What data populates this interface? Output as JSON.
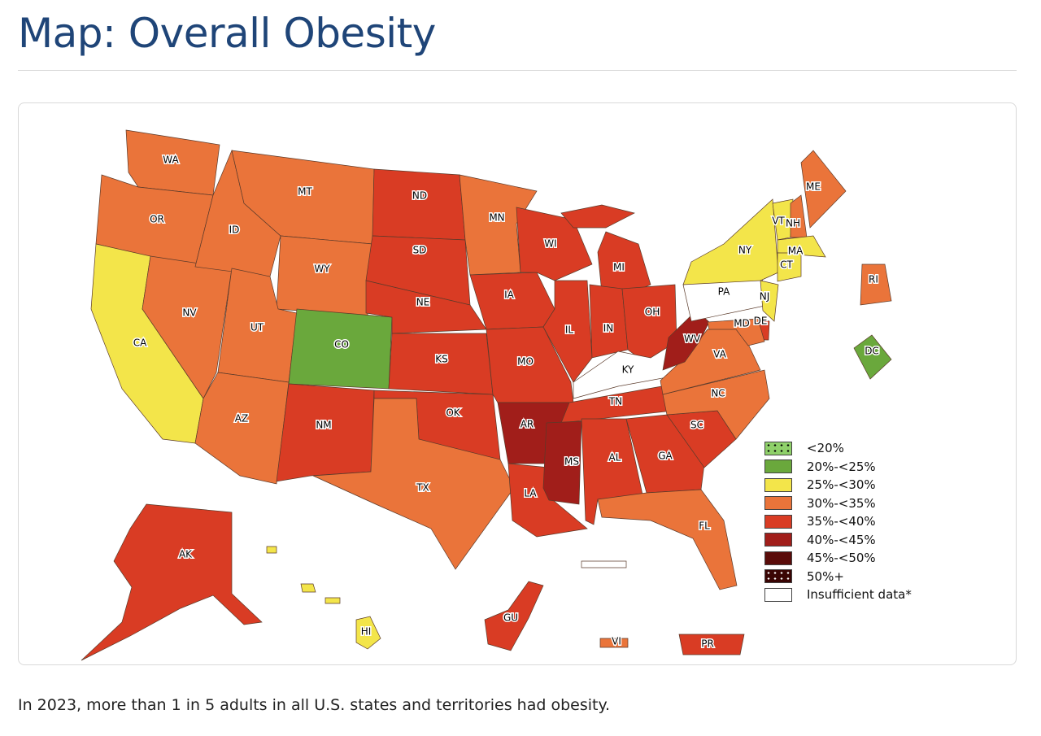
{
  "title": "Map: Overall Obesity",
  "caption": "In 2023, more than 1 in 5 adults in all U.S. states and territories had obesity.",
  "legend": [
    {
      "label": "<20%",
      "color": "#8fd06a",
      "pattern": "dots"
    },
    {
      "label": "20%-<25%",
      "color": "#6aa83c"
    },
    {
      "label": "25%-<30%",
      "color": "#f3e54a"
    },
    {
      "label": "30%-<35%",
      "color": "#ea743a"
    },
    {
      "label": "35%-<40%",
      "color": "#d93c24"
    },
    {
      "label": "40%-<45%",
      "color": "#a11e1a"
    },
    {
      "label": "45%-<50%",
      "color": "#5a0c0a"
    },
    {
      "label": "50%+",
      "color": "#3a0504",
      "pattern": "dots"
    },
    {
      "label": "Insufficient data*",
      "color": "#ffffff"
    }
  ],
  "states": [
    {
      "abbr": "WA",
      "category": "30%-<35%"
    },
    {
      "abbr": "OR",
      "category": "30%-<35%"
    },
    {
      "abbr": "CA",
      "category": "25%-<30%"
    },
    {
      "abbr": "NV",
      "category": "30%-<35%"
    },
    {
      "abbr": "ID",
      "category": "30%-<35%"
    },
    {
      "abbr": "MT",
      "category": "30%-<35%"
    },
    {
      "abbr": "WY",
      "category": "30%-<35%"
    },
    {
      "abbr": "UT",
      "category": "30%-<35%"
    },
    {
      "abbr": "CO",
      "category": "20%-<25%"
    },
    {
      "abbr": "AZ",
      "category": "30%-<35%"
    },
    {
      "abbr": "NM",
      "category": "35%-<40%"
    },
    {
      "abbr": "ND",
      "category": "35%-<40%"
    },
    {
      "abbr": "SD",
      "category": "35%-<40%"
    },
    {
      "abbr": "NE",
      "category": "35%-<40%"
    },
    {
      "abbr": "KS",
      "category": "35%-<40%"
    },
    {
      "abbr": "OK",
      "category": "35%-<40%"
    },
    {
      "abbr": "TX",
      "category": "30%-<35%"
    },
    {
      "abbr": "MN",
      "category": "30%-<35%"
    },
    {
      "abbr": "IA",
      "category": "35%-<40%"
    },
    {
      "abbr": "MO",
      "category": "35%-<40%"
    },
    {
      "abbr": "AR",
      "category": "40%-<45%"
    },
    {
      "abbr": "LA",
      "category": "35%-<40%"
    },
    {
      "abbr": "WI",
      "category": "35%-<40%"
    },
    {
      "abbr": "IL",
      "category": "35%-<40%"
    },
    {
      "abbr": "MI",
      "category": "35%-<40%"
    },
    {
      "abbr": "IN",
      "category": "35%-<40%"
    },
    {
      "abbr": "OH",
      "category": "35%-<40%"
    },
    {
      "abbr": "KY",
      "category": "Insufficient data*"
    },
    {
      "abbr": "TN",
      "category": "35%-<40%"
    },
    {
      "abbr": "MS",
      "category": "40%-<45%"
    },
    {
      "abbr": "AL",
      "category": "35%-<40%"
    },
    {
      "abbr": "GA",
      "category": "35%-<40%"
    },
    {
      "abbr": "FL",
      "category": "30%-<35%"
    },
    {
      "abbr": "SC",
      "category": "35%-<40%"
    },
    {
      "abbr": "NC",
      "category": "30%-<35%"
    },
    {
      "abbr": "VA",
      "category": "30%-<35%"
    },
    {
      "abbr": "WV",
      "category": "40%-<45%"
    },
    {
      "abbr": "PA",
      "category": "Insufficient data*"
    },
    {
      "abbr": "NY",
      "category": "25%-<30%"
    },
    {
      "abbr": "NJ",
      "category": "25%-<30%"
    },
    {
      "abbr": "DE",
      "category": "35%-<40%"
    },
    {
      "abbr": "MD",
      "category": "30%-<35%"
    },
    {
      "abbr": "VT",
      "category": "25%-<30%"
    },
    {
      "abbr": "NH",
      "category": "30%-<35%"
    },
    {
      "abbr": "ME",
      "category": "30%-<35%"
    },
    {
      "abbr": "MA",
      "category": "25%-<30%"
    },
    {
      "abbr": "CT",
      "category": "25%-<30%"
    },
    {
      "abbr": "RI",
      "category": "30%-<35%"
    },
    {
      "abbr": "DC",
      "category": "20%-<25%"
    },
    {
      "abbr": "AK",
      "category": "35%-<40%"
    },
    {
      "abbr": "HI",
      "category": "25%-<30%"
    },
    {
      "abbr": "GU",
      "category": "35%-<40%"
    },
    {
      "abbr": "PR",
      "category": "35%-<40%"
    },
    {
      "abbr": "VI",
      "category": "30%-<35%"
    }
  ]
}
